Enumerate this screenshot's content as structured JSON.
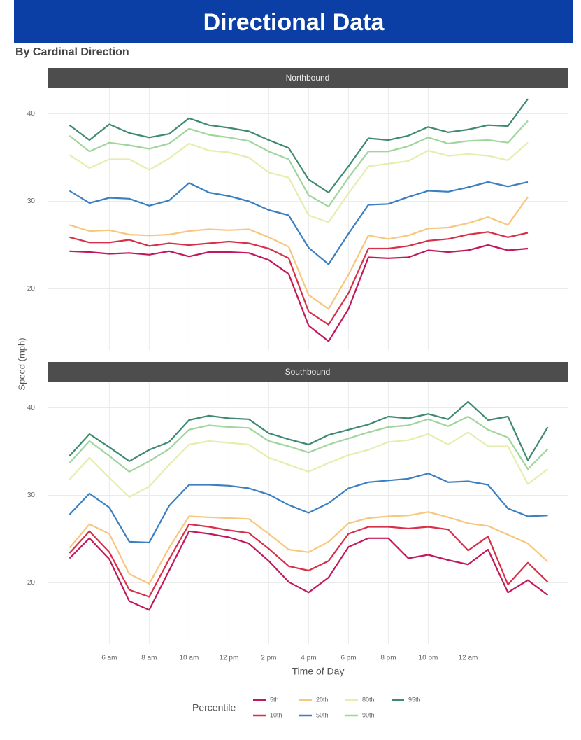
{
  "title": "Directional Data",
  "chart_data": {
    "type": "line",
    "subtitle": "By Cardinal Direction",
    "x_label": "Time of Day",
    "y_label": "Speed (mph)",
    "legend_title": "Percentile",
    "x": [
      4,
      5,
      6,
      7,
      8,
      9,
      10,
      11,
      12,
      13,
      14,
      15,
      16,
      17,
      18,
      19,
      20,
      21,
      22,
      23,
      24,
      25,
      26,
      27,
      28
    ],
    "xlim": [
      2.9,
      29.0
    ],
    "xticks": [
      {
        "value": 6,
        "label": "6 am"
      },
      {
        "value": 8,
        "label": "8 am"
      },
      {
        "value": 10,
        "label": "10 am"
      },
      {
        "value": 12,
        "label": "12 pm"
      },
      {
        "value": 14,
        "label": "2 pm"
      },
      {
        "value": 16,
        "label": "4 pm"
      },
      {
        "value": 18,
        "label": "6 pm"
      },
      {
        "value": 20,
        "label": "8 pm"
      },
      {
        "value": 22,
        "label": "10 pm"
      },
      {
        "value": 24,
        "label": "12 am"
      }
    ],
    "ylim": [
      13,
      43
    ],
    "yticks": [
      20,
      30,
      40
    ],
    "grid": true,
    "series": [
      {
        "name": "5th",
        "color": "#c2185b"
      },
      {
        "name": "10th",
        "color": "#d73049"
      },
      {
        "name": "20th",
        "color": "#f7c77e"
      },
      {
        "name": "50th",
        "color": "#3a7fc1"
      },
      {
        "name": "80th",
        "color": "#e4eeae"
      },
      {
        "name": "90th",
        "color": "#a0d59c"
      },
      {
        "name": "95th",
        "color": "#3d8a70"
      }
    ],
    "facets": [
      {
        "title": "Northbound",
        "values": [
          [
            24.3,
            24.2,
            24.0,
            24.1,
            23.9,
            24.3,
            23.7,
            24.2,
            24.2,
            24.1,
            23.3,
            21.7,
            15.8,
            14.0,
            17.7,
            23.6,
            23.5,
            23.6,
            24.4,
            24.2,
            24.4,
            25.0,
            24.4,
            24.6,
            null
          ],
          [
            25.9,
            25.3,
            25.3,
            25.6,
            24.9,
            25.2,
            25.0,
            25.2,
            25.4,
            25.2,
            24.6,
            23.5,
            17.4,
            15.9,
            19.5,
            24.6,
            24.6,
            24.9,
            25.5,
            25.7,
            26.2,
            26.5,
            25.9,
            26.4,
            null
          ],
          [
            27.3,
            26.6,
            26.7,
            26.2,
            26.1,
            26.2,
            26.6,
            26.8,
            26.7,
            26.8,
            25.9,
            24.8,
            19.3,
            17.7,
            21.6,
            26.1,
            25.7,
            26.1,
            26.9,
            27.0,
            27.5,
            28.2,
            27.3,
            30.5,
            null
          ],
          [
            31.2,
            29.8,
            30.4,
            30.3,
            29.5,
            30.1,
            32.1,
            31.0,
            30.6,
            30.0,
            29.0,
            28.4,
            24.7,
            22.8,
            26.3,
            29.6,
            29.7,
            30.5,
            31.2,
            31.1,
            31.6,
            32.2,
            31.7,
            32.2,
            null
          ],
          [
            35.3,
            33.8,
            34.8,
            34.8,
            33.6,
            34.9,
            36.6,
            35.8,
            35.6,
            35.0,
            33.3,
            32.7,
            28.4,
            27.6,
            30.9,
            34.0,
            34.3,
            34.6,
            35.8,
            35.2,
            35.4,
            35.2,
            34.7,
            36.7,
            null
          ],
          [
            37.5,
            35.7,
            36.7,
            36.4,
            36.0,
            36.6,
            38.3,
            37.6,
            37.3,
            36.9,
            35.7,
            34.8,
            30.7,
            29.4,
            32.7,
            35.7,
            35.7,
            36.3,
            37.3,
            36.6,
            36.9,
            37.0,
            36.7,
            39.2,
            null
          ],
          [
            38.7,
            37.0,
            38.8,
            37.8,
            37.3,
            37.7,
            39.5,
            38.7,
            38.4,
            38.0,
            37.0,
            36.1,
            32.5,
            31.0,
            34.0,
            37.2,
            37.0,
            37.5,
            38.5,
            37.9,
            38.2,
            38.7,
            38.6,
            41.7,
            null
          ]
        ]
      },
      {
        "title": "Southbound",
        "values": [
          [
            22.8,
            25.1,
            22.7,
            17.9,
            16.9,
            21.4,
            25.9,
            25.6,
            25.2,
            24.5,
            22.5,
            20.1,
            18.9,
            20.6,
            24.1,
            25.1,
            25.1,
            22.8,
            23.2,
            22.6,
            22.1,
            23.8,
            18.9,
            20.3,
            18.6
          ],
          [
            23.4,
            25.9,
            23.5,
            19.2,
            18.4,
            22.7,
            26.7,
            26.4,
            26.0,
            25.7,
            23.9,
            21.9,
            21.4,
            22.5,
            25.6,
            26.4,
            26.4,
            26.2,
            26.4,
            26.1,
            23.7,
            25.3,
            19.8,
            22.3,
            20.1
          ],
          [
            24.0,
            26.7,
            25.6,
            21.0,
            19.9,
            24.0,
            27.6,
            27.5,
            27.4,
            27.3,
            25.6,
            23.8,
            23.5,
            24.7,
            26.8,
            27.4,
            27.6,
            27.7,
            28.1,
            27.5,
            26.8,
            26.5,
            25.5,
            24.5,
            22.4
          ],
          [
            27.8,
            30.2,
            28.6,
            24.7,
            24.6,
            28.8,
            31.2,
            31.2,
            31.1,
            30.8,
            30.1,
            28.9,
            28.0,
            29.1,
            30.8,
            31.5,
            31.7,
            31.9,
            32.5,
            31.5,
            31.6,
            31.2,
            28.5,
            27.6,
            27.7
          ],
          [
            31.8,
            34.3,
            32.0,
            29.8,
            31.0,
            33.5,
            35.8,
            36.2,
            36.0,
            35.8,
            34.3,
            33.5,
            32.7,
            33.7,
            34.6,
            35.2,
            36.1,
            36.3,
            37.0,
            35.8,
            37.2,
            35.6,
            35.6,
            31.3,
            33.0
          ],
          [
            33.7,
            36.2,
            34.5,
            32.7,
            33.9,
            35.3,
            37.5,
            38.0,
            37.8,
            37.7,
            36.2,
            35.6,
            34.9,
            35.8,
            36.5,
            37.2,
            37.8,
            38.0,
            38.7,
            37.9,
            39.0,
            37.5,
            36.6,
            33.0,
            35.3
          ],
          [
            34.5,
            37.0,
            35.5,
            33.9,
            35.2,
            36.1,
            38.6,
            39.1,
            38.8,
            38.7,
            37.1,
            36.4,
            35.8,
            36.9,
            37.5,
            38.1,
            39.0,
            38.8,
            39.3,
            38.7,
            40.7,
            38.6,
            39.0,
            34.0,
            37.8
          ]
        ]
      }
    ]
  }
}
